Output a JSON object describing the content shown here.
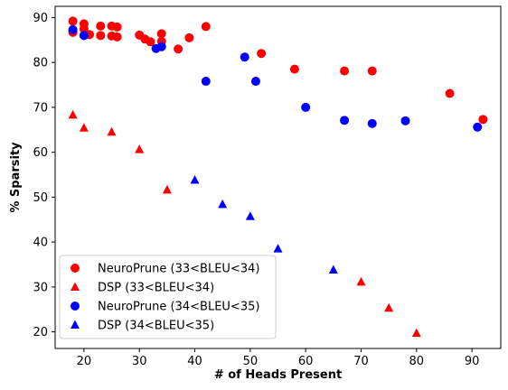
{
  "chart_data": {
    "type": "scatter",
    "title": "",
    "xlabel": "# of Heads Present",
    "ylabel": "% Sparsity",
    "xlim": [
      14.8,
      95.2
    ],
    "ylim": [
      16.3,
      92.5
    ],
    "xticks": [
      20,
      30,
      40,
      50,
      60,
      70,
      80,
      90
    ],
    "yticks": [
      20,
      30,
      40,
      50,
      60,
      70,
      80,
      90
    ],
    "grid": false,
    "legend_position": "lower-left",
    "series": [
      {
        "name": "NeuroPrune (33<BLEU<34)",
        "marker": "circle",
        "color": "#ff0000",
        "points": [
          [
            18,
            89.2
          ],
          [
            18,
            87.0
          ],
          [
            18,
            86.7
          ],
          [
            20,
            88.6
          ],
          [
            20,
            87.5
          ],
          [
            21,
            86.2
          ],
          [
            23,
            88.1
          ],
          [
            23,
            86.0
          ],
          [
            25,
            88.1
          ],
          [
            25,
            85.9
          ],
          [
            26,
            87.9
          ],
          [
            26,
            85.7
          ],
          [
            30,
            86.1
          ],
          [
            31,
            85.2
          ],
          [
            32,
            84.6
          ],
          [
            34,
            86.4
          ],
          [
            34,
            84.7
          ],
          [
            37,
            83.0
          ],
          [
            39,
            85.5
          ],
          [
            42,
            88.0
          ],
          [
            52,
            82.0
          ],
          [
            58,
            78.5
          ],
          [
            67,
            78.1
          ],
          [
            72,
            78.1
          ],
          [
            86,
            73.1
          ],
          [
            92,
            67.3
          ]
        ]
      },
      {
        "name": "DSP (33<BLEU<34)",
        "marker": "triangle",
        "color": "#ff0000",
        "points": [
          [
            18,
            68.3
          ],
          [
            20,
            65.4
          ],
          [
            25,
            64.5
          ],
          [
            30,
            60.6
          ],
          [
            35,
            51.6
          ],
          [
            70,
            31.1
          ],
          [
            75,
            25.3
          ],
          [
            80,
            19.7
          ]
        ]
      },
      {
        "name": "NeuroPrune (34<BLEU<35)",
        "marker": "circle",
        "color": "#0000ff",
        "points": [
          [
            18,
            87.3
          ],
          [
            20,
            86.0
          ],
          [
            33,
            83.1
          ],
          [
            34,
            83.5
          ],
          [
            42,
            75.8
          ],
          [
            49,
            81.2
          ],
          [
            51,
            75.8
          ],
          [
            60,
            70.0
          ],
          [
            67,
            67.1
          ],
          [
            72,
            66.4
          ],
          [
            78,
            67.0
          ],
          [
            91,
            65.6
          ]
        ]
      },
      {
        "name": "DSP (34<BLEU<35)",
        "marker": "triangle",
        "color": "#0000ff",
        "points": [
          [
            40,
            53.8
          ],
          [
            45,
            48.4
          ],
          [
            50,
            45.7
          ],
          [
            55,
            38.5
          ],
          [
            65,
            33.8
          ]
        ]
      }
    ]
  }
}
